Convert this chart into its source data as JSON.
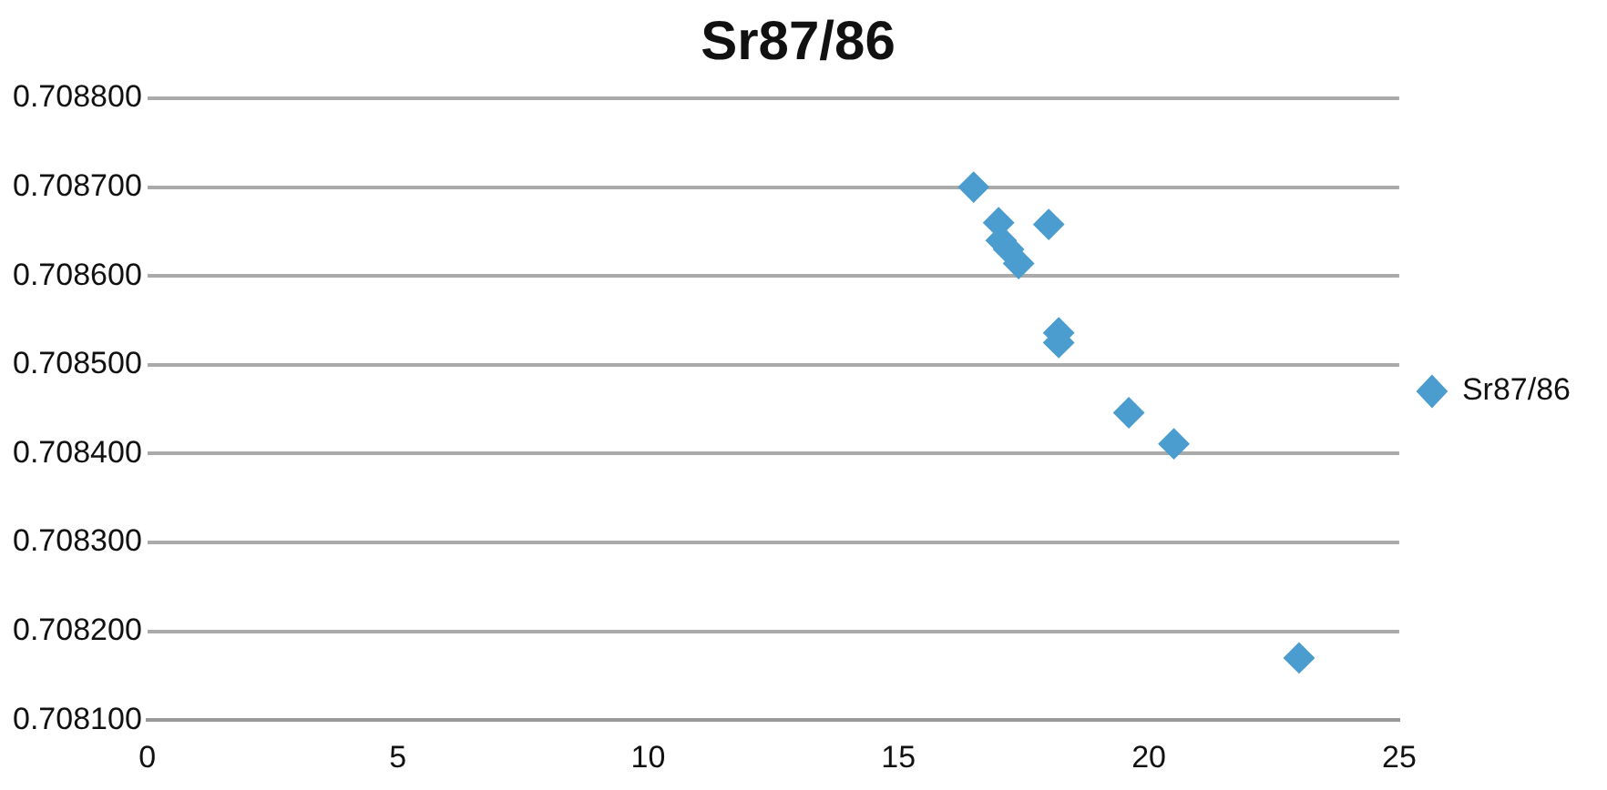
{
  "chart_data": {
    "type": "scatter",
    "title": "Sr87/86",
    "marker": "diamond",
    "legend": "right",
    "grid": "y",
    "series": [
      {
        "name": "Sr87/86",
        "color": "#4a9dce",
        "x": [
          16.5,
          17.0,
          17.05,
          17.2,
          17.4,
          18.0,
          18.2,
          18.2,
          19.6,
          20.5,
          23.0
        ],
        "values": [
          0.7087,
          0.70866,
          0.70864,
          0.70863,
          0.708614,
          0.708658,
          0.708536,
          0.708525,
          0.708446,
          0.708411,
          0.70817
        ]
      }
    ],
    "xlim": [
      0,
      25
    ],
    "xticks": [
      0,
      5,
      10,
      15,
      20,
      25
    ],
    "ylim": [
      0.7081,
      0.7088
    ],
    "yticks": [
      {
        "value": 0.7081,
        "label": "0.708100"
      },
      {
        "value": 0.7082,
        "label": "0.708200"
      },
      {
        "value": 0.7083,
        "label": "0.708300"
      },
      {
        "value": 0.7084,
        "label": "0.708400"
      },
      {
        "value": 0.7085,
        "label": "0.708500"
      },
      {
        "value": 0.7086,
        "label": "0.708600"
      },
      {
        "value": 0.7087,
        "label": "0.708700"
      },
      {
        "value": 0.7088,
        "label": "0.708800"
      }
    ]
  }
}
